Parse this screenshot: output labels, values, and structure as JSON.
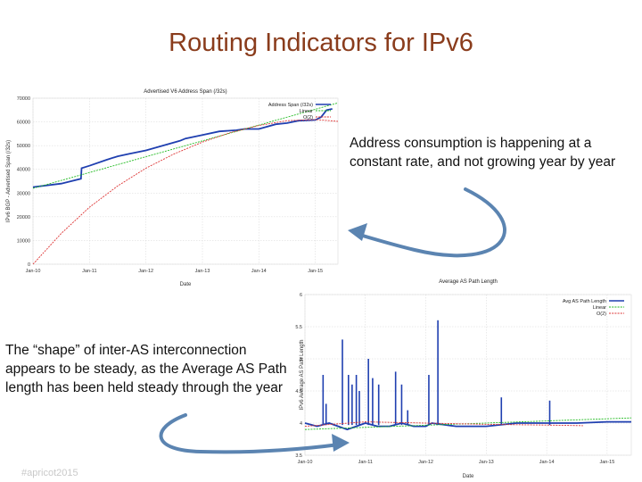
{
  "slide": {
    "title": "Routing Indicators for IPv6",
    "note_top": "Address consumption is happening at a constant rate, and not growing year by year",
    "note_bottom": "The “shape” of inter-AS interconnection appears to be steady, as the Average AS Path length has been held steady through the year",
    "footer": "#apricot2015"
  },
  "colors": {
    "title": "#8a3c1c",
    "series_main": "#1f3fb0",
    "linear": "#22bb22",
    "quadratic": "#dd3333",
    "arrow": "#5b84b1"
  },
  "chart_data": [
    {
      "type": "line",
      "title": "Advertised V6 Address Span (/32s)",
      "xlabel": "Date",
      "ylabel": "IPv6 BGP - Advertised Span (/32s)",
      "x_ticks": [
        "Jan-10",
        "Jan-11",
        "Jan-12",
        "Jan-13",
        "Jan-14",
        "Jan-15"
      ],
      "y_ticks": [
        0,
        10000,
        20000,
        30000,
        40000,
        50000,
        60000,
        70000
      ],
      "ylim": [
        0,
        70000
      ],
      "xlim": [
        2010.0,
        2015.4
      ],
      "grid": true,
      "legend_position": "top-right",
      "series": [
        {
          "name": "Address Span (/32s)",
          "x": [
            2010.0,
            2010.5,
            2010.85,
            2010.86,
            2011.0,
            2011.3,
            2011.5,
            2011.7,
            2012.0,
            2012.3,
            2012.6,
            2012.7,
            2013.0,
            2013.3,
            2013.6,
            2013.75,
            2014.0,
            2014.3,
            2014.5,
            2014.7,
            2015.0,
            2015.1,
            2015.2,
            2015.3
          ],
          "y": [
            32500,
            34000,
            36000,
            40500,
            41500,
            44000,
            45500,
            46500,
            48000,
            50000,
            52000,
            53000,
            54500,
            56000,
            56500,
            57000,
            57000,
            59000,
            59500,
            60500,
            60800,
            62000,
            65000,
            65500
          ]
        },
        {
          "name": "Linear",
          "x": [
            2010.0,
            2015.4
          ],
          "y": [
            32000,
            68000
          ]
        },
        {
          "name": "O(2)",
          "x": [
            2010.0,
            2010.5,
            2011.0,
            2011.5,
            2012.0,
            2012.5,
            2013.0,
            2013.5,
            2014.0,
            2014.5,
            2015.0,
            2015.4
          ],
          "y": [
            0,
            13000,
            24000,
            33000,
            40500,
            46500,
            51500,
            55500,
            58500,
            60500,
            61000,
            60200
          ]
        }
      ]
    },
    {
      "type": "line",
      "title": "Average AS Path Length",
      "xlabel": "Date",
      "ylabel": "IPv6 Average AS Path Length",
      "x_ticks": [
        "Jan-10",
        "Jan-11",
        "Jan-12",
        "Jan-13",
        "Jan-14",
        "Jan-15"
      ],
      "y_ticks": [
        3.5,
        4,
        4.5,
        5,
        5.5,
        6
      ],
      "ylim": [
        3.5,
        6
      ],
      "xlim": [
        2010.0,
        2015.4
      ],
      "grid": true,
      "legend_position": "top-right",
      "series": [
        {
          "name": "Avg AS Path Length",
          "x": [
            2010.0,
            2010.2,
            2010.4,
            2010.55,
            2010.7,
            2010.85,
            2011.0,
            2011.2,
            2011.4,
            2011.6,
            2011.8,
            2012.0,
            2012.1,
            2012.5,
            2013.0,
            2013.5,
            2014.0,
            2014.5,
            2015.0,
            2015.4
          ],
          "y": [
            4.0,
            3.95,
            4.0,
            3.95,
            3.9,
            3.95,
            4.0,
            3.95,
            3.95,
            4.0,
            3.95,
            3.95,
            4.0,
            3.95,
            3.95,
            4.0,
            4.0,
            4.0,
            4.02,
            4.02
          ],
          "spikes": [
            {
              "x": 2010.3,
              "y": 4.75
            },
            {
              "x": 2010.35,
              "y": 4.3
            },
            {
              "x": 2010.62,
              "y": 5.3
            },
            {
              "x": 2010.72,
              "y": 4.75
            },
            {
              "x": 2010.78,
              "y": 4.6
            },
            {
              "x": 2010.85,
              "y": 4.75
            },
            {
              "x": 2010.9,
              "y": 4.5
            },
            {
              "x": 2011.05,
              "y": 5.0
            },
            {
              "x": 2011.12,
              "y": 4.7
            },
            {
              "x": 2011.22,
              "y": 4.6
            },
            {
              "x": 2011.5,
              "y": 4.8
            },
            {
              "x": 2011.6,
              "y": 4.6
            },
            {
              "x": 2011.7,
              "y": 4.2
            },
            {
              "x": 2012.05,
              "y": 4.75
            },
            {
              "x": 2012.2,
              "y": 5.6
            },
            {
              "x": 2013.25,
              "y": 4.4
            },
            {
              "x": 2014.05,
              "y": 4.35
            }
          ]
        },
        {
          "name": "Linear",
          "x": [
            2010.0,
            2015.4
          ],
          "y": [
            3.9,
            4.08
          ]
        },
        {
          "name": "O(2)",
          "x": [
            2010.0,
            2011.0,
            2012.0,
            2013.0,
            2014.0,
            2014.6
          ],
          "y": [
            3.95,
            4.02,
            4.0,
            3.98,
            3.97,
            3.96
          ]
        }
      ]
    }
  ]
}
